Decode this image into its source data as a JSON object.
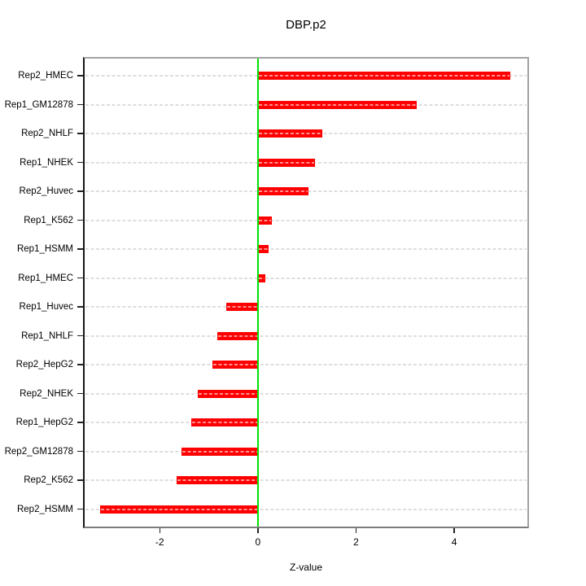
{
  "title": "DBP.p2",
  "chart_data": {
    "type": "bar",
    "orientation": "horizontal",
    "title": "DBP.p2",
    "xlabel": "Z-value",
    "ylabel": "",
    "categories": [
      "Rep2_HMEC",
      "Rep1_GM12878",
      "Rep2_NHLF",
      "Rep1_NHEK",
      "Rep2_Huvec",
      "Rep1_K562",
      "Rep1_HSMM",
      "Rep1_HMEC",
      "Rep1_Huvec",
      "Rep1_NHLF",
      "Rep2_HepG2",
      "Rep2_NHEK",
      "Rep1_HepG2",
      "Rep2_GM12878",
      "Rep2_K562",
      "Rep2_HSMM"
    ],
    "values": [
      5.15,
      3.23,
      1.31,
      1.16,
      1.03,
      0.29,
      0.22,
      0.15,
      -0.65,
      -0.83,
      -0.93,
      -1.23,
      -1.36,
      -1.56,
      -1.65,
      -3.21
    ],
    "x_ticks": [
      -2,
      0,
      2,
      4
    ],
    "xlim": [
      -3.53,
      5.49
    ],
    "zero_reference": 0,
    "grid": "dashed horizontal line per category",
    "legend": "none",
    "colors": {
      "bar": "#ff0000",
      "bar_inner_dash": "#ff9090",
      "gridline_dash": "#dedede",
      "zero_line": "#00e400",
      "axis_text": "#000000"
    }
  }
}
